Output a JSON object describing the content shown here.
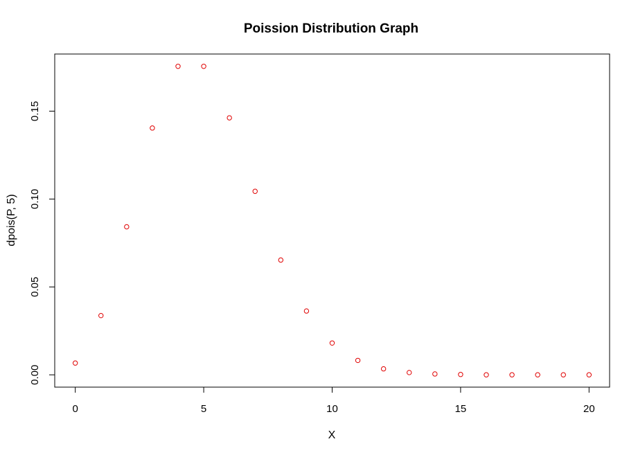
{
  "chart_data": {
    "type": "scatter",
    "title": "Poission Distribution Graph",
    "xlabel": "X",
    "ylabel": "dpois(P, 5)",
    "x": [
      0,
      1,
      2,
      3,
      4,
      5,
      6,
      7,
      8,
      9,
      10,
      11,
      12,
      13,
      14,
      15,
      16,
      17,
      18,
      19,
      20
    ],
    "y": [
      0.0067,
      0.0337,
      0.0842,
      0.1404,
      0.1755,
      0.1755,
      0.1462,
      0.1044,
      0.0653,
      0.0363,
      0.0181,
      0.0082,
      0.0034,
      0.0013,
      0.0005,
      0.0002,
      0.0,
      0.0,
      0.0,
      0.0,
      0.0
    ],
    "x_ticks": [
      0,
      5,
      10,
      15,
      20
    ],
    "x_tick_labels": [
      "0",
      "5",
      "10",
      "15",
      "20"
    ],
    "y_ticks": [
      0,
      0.05,
      0.1,
      0.15
    ],
    "y_tick_labels": [
      "0.00",
      "0.05",
      "0.10",
      "0.15"
    ],
    "xlim": [
      -0.8,
      20.8
    ],
    "ylim": [
      -0.007,
      0.1825
    ],
    "marker": "open-circle",
    "point_color": "#e00000",
    "grid": false,
    "legend": "none"
  }
}
